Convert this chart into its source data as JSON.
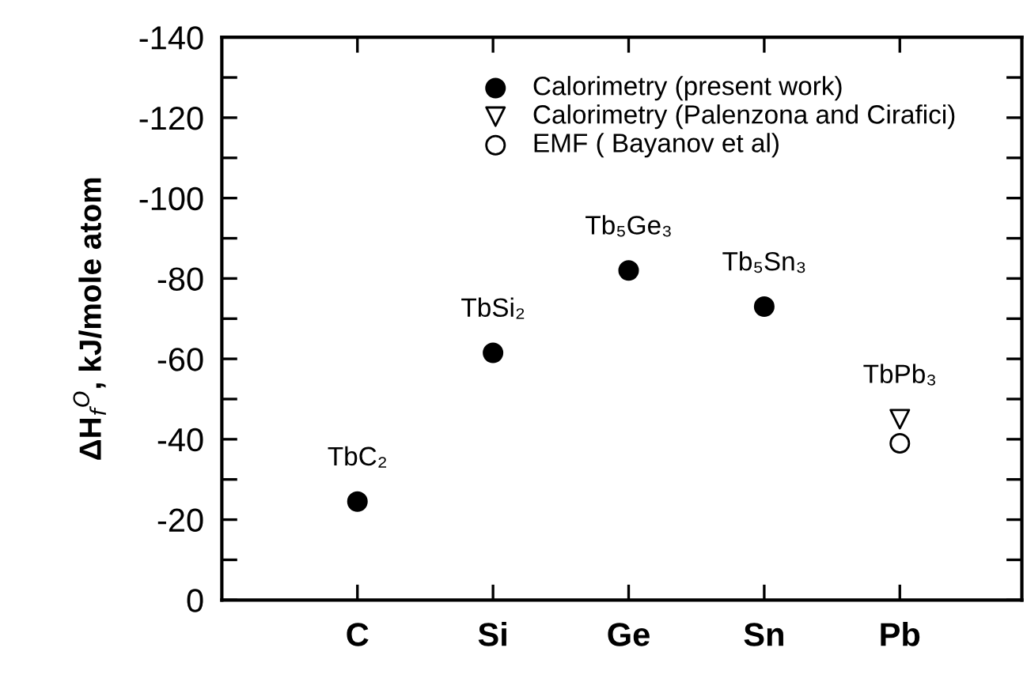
{
  "chart_data": {
    "type": "scatter",
    "ylabel": "ΔH$_{f}$$^{O}$, kJ/mole atom",
    "categories": [
      "C",
      "Si",
      "Ge",
      "Sn",
      "Pb"
    ],
    "series": [
      {
        "name": "Calorimetry (present work)",
        "color": "#000000",
        "marker": "circle",
        "values": [
          -24.5,
          -61.5,
          -82,
          -73,
          null
        ]
      },
      {
        "name": "Calorimetry (Palenzona and Cirafici)",
        "color": "#ffffff",
        "marker": "triangle",
        "values": [
          null,
          null,
          null,
          null,
          -45
        ]
      },
      {
        "name": "EMF ( Bayanov et al)",
        "color": "#ffffff",
        "marker": "circle",
        "values": [
          null,
          null,
          null,
          null,
          -39
        ]
      }
    ],
    "ylim": [
      0,
      -140
    ],
    "yticks": [
      0,
      {
        "value": -10,
        "label": null
      },
      -20,
      {
        "value": -30,
        "label": null
      },
      -40,
      {
        "value": -50,
        "label": null
      },
      -60,
      {
        "value": -70,
        "label": null
      },
      -80,
      {
        "value": -90,
        "label": null
      },
      -100,
      {
        "value": -110,
        "label": null
      },
      -120,
      {
        "value": -130,
        "label": null
      },
      -140
    ],
    "annotations": [
      {
        "text": "TbC₂",
        "x": "C",
        "y": -24.5
      },
      {
        "text": "TbSi₂",
        "x": "Si",
        "y": -61.5
      },
      {
        "text": "Tb₅Ge₃",
        "x": "Ge",
        "y": -82
      },
      {
        "text": "Tb₅Sn₃",
        "x": "Sn",
        "y": -73
      },
      {
        "text": "TbPb₃",
        "x": "Pb",
        "y": -45
      }
    ],
    "legend": "top",
    "grid": false
  }
}
